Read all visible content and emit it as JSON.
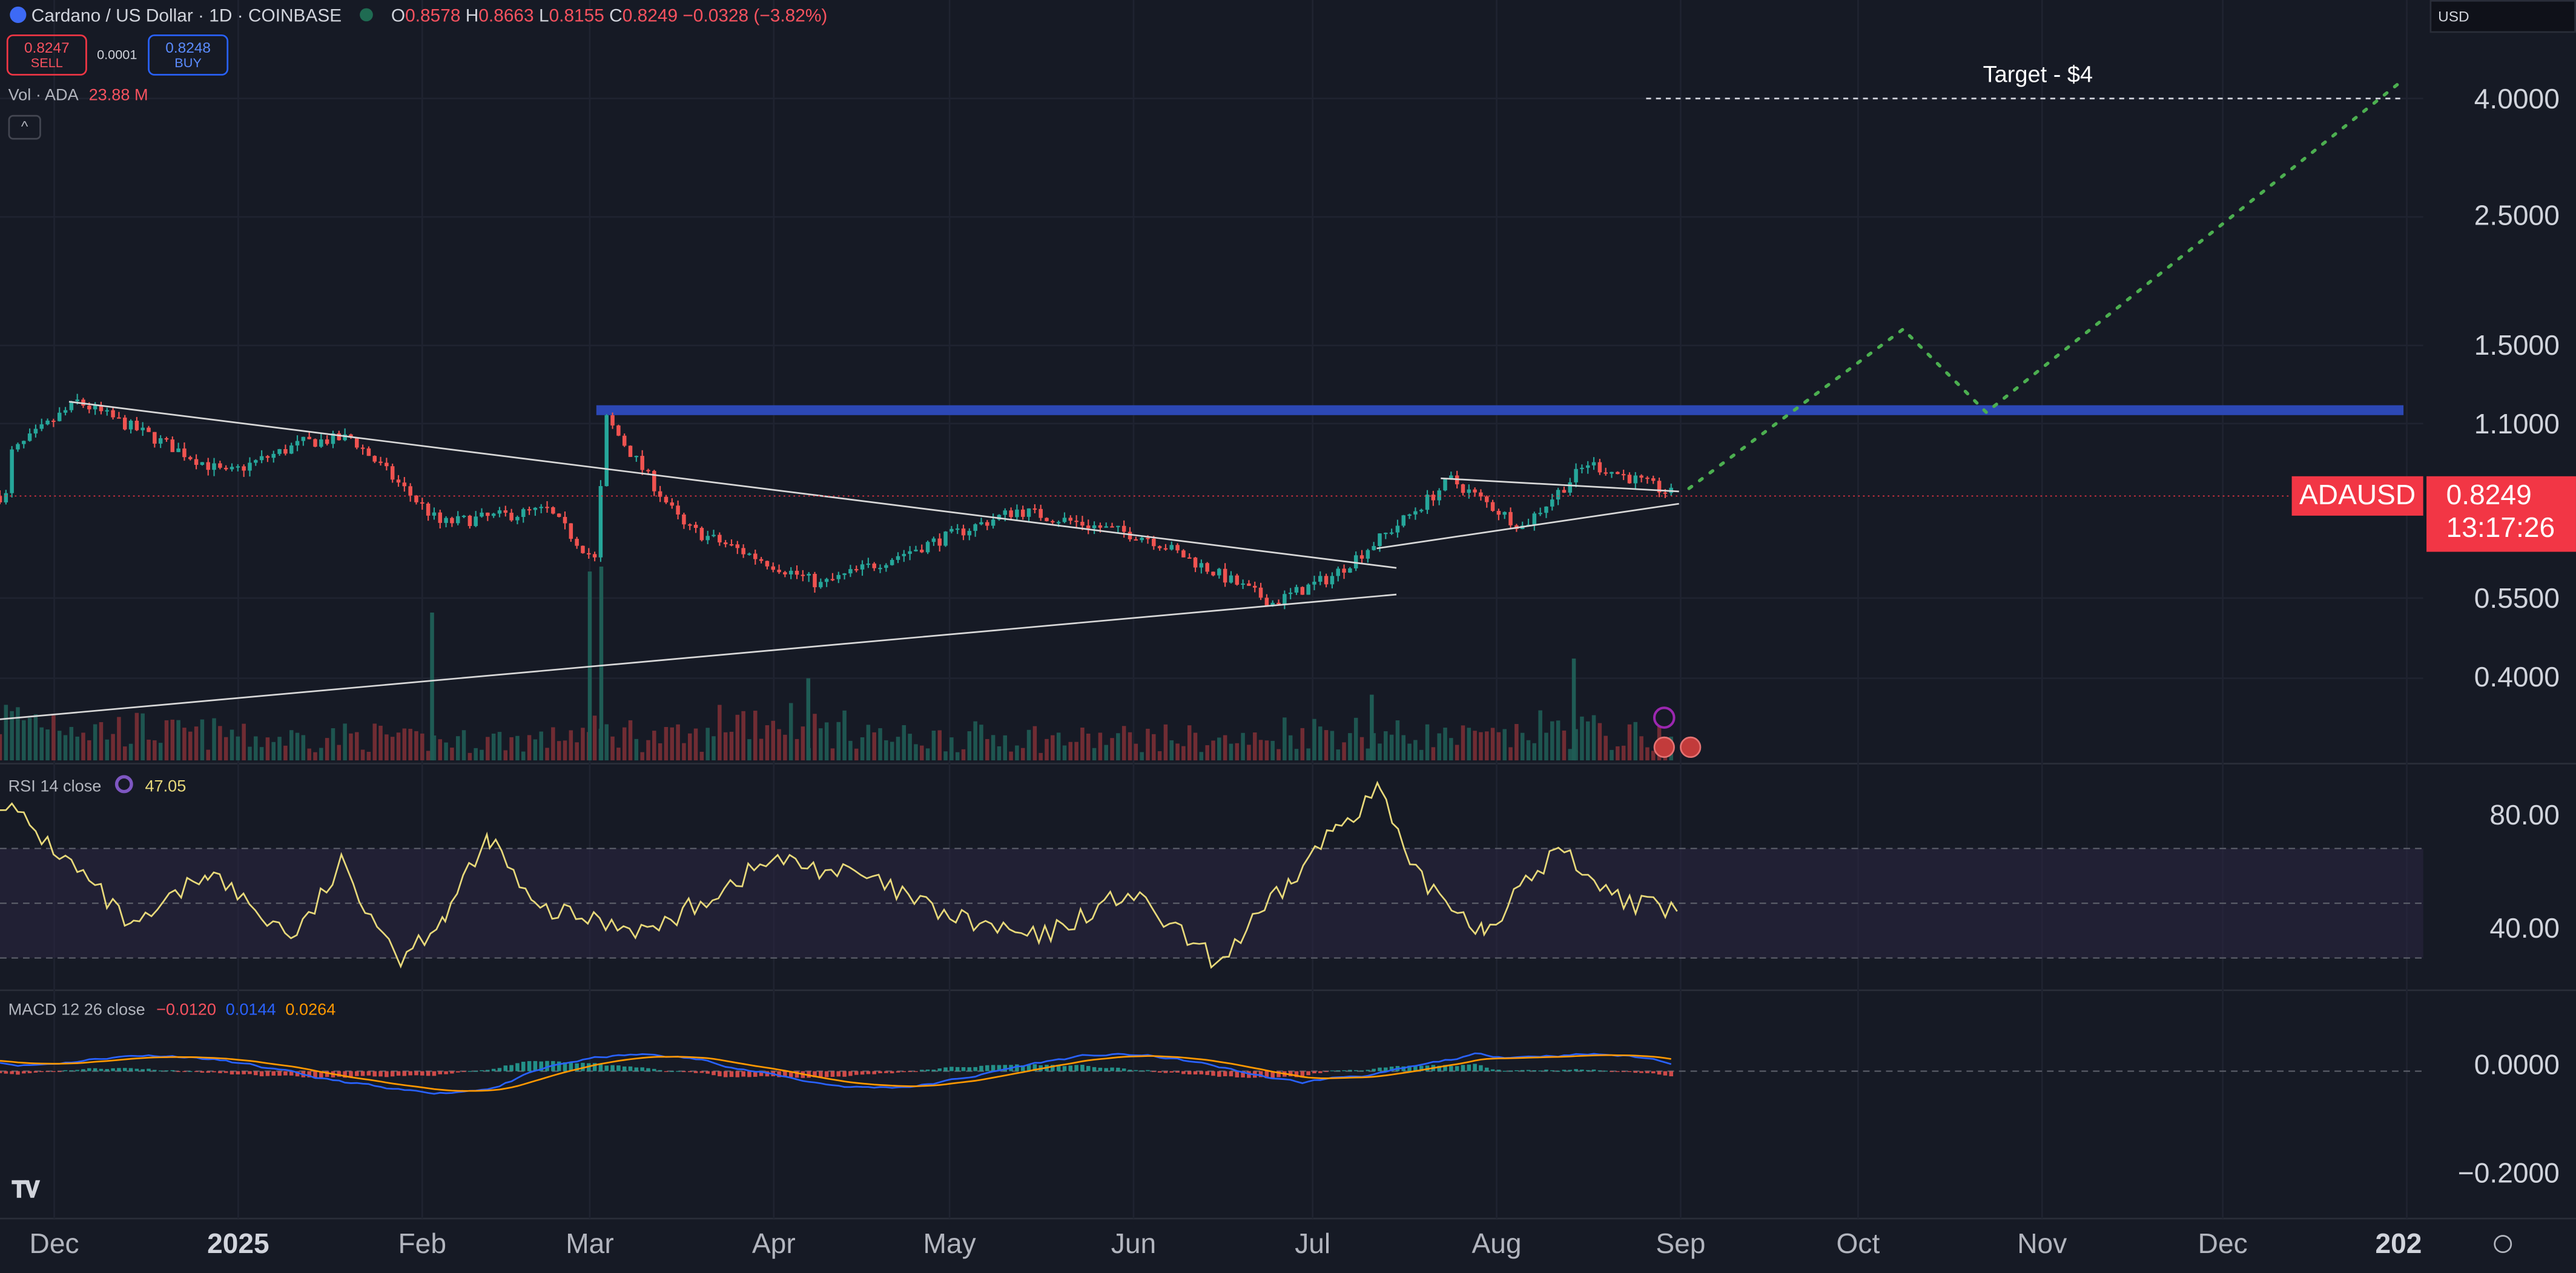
{
  "header": {
    "symbol": "Cardano / US Dollar · 1D · COINBASE",
    "open_label": "O",
    "open": "0.8578",
    "high_label": "H",
    "high": "0.8663",
    "low_label": "L",
    "low": "0.8155",
    "close_label": "C",
    "close": "0.8249",
    "change": "−0.0328 (−3.82%)",
    "sell_price": "0.8247",
    "sell_label": "SELL",
    "spread": "0.0001",
    "buy_price": "0.8248",
    "buy_label": "BUY",
    "vol_label": "Vol · ADA",
    "vol_value": "23.88 M",
    "currency": "USD"
  },
  "price_tag": {
    "symbol": "ADAUSD",
    "price": "0.8249",
    "countdown": "13:17:26"
  },
  "annotation": {
    "text": "Target - $4"
  },
  "rsi": {
    "label": "RSI 14 close",
    "value": "47.05"
  },
  "macd": {
    "label": "MACD 12 26 close",
    "v1": "−0.0120",
    "v2": "0.0144",
    "v3": "0.0264"
  },
  "colors": {
    "bg": "#161a25",
    "up": "#26a69a",
    "down": "#ef5350",
    "resistance": "#2c48b5",
    "projection": "#4caf50",
    "rsi_line": "#e8d97a"
  },
  "chart_data": [
    {
      "type": "candlestick",
      "scale": "log",
      "ylim": [
        0.32,
        5.3
      ],
      "yticks": [
        "4.0000",
        "2.5000",
        "1.5000",
        "1.1000",
        "0.5500",
        "0.4000"
      ],
      "xticks": [
        "Dec",
        "2025",
        "Feb",
        "Mar",
        "Apr",
        "May",
        "Jun",
        "Jul",
        "Aug",
        "Sep",
        "Oct",
        "Nov",
        "Dec",
        "202"
      ],
      "close_path": [
        [
          "2024-11-22",
          0.98
        ],
        [
          "2024-12-03",
          1.2
        ],
        [
          "2024-12-15",
          1.05
        ],
        [
          "2024-12-28",
          0.9
        ],
        [
          "2025-01-10",
          1.02
        ],
        [
          "2025-01-18",
          1.04
        ],
        [
          "2025-02-02",
          0.74
        ],
        [
          "2025-02-20",
          0.78
        ],
        [
          "2025-02-28",
          0.64
        ],
        [
          "2025-03-02",
          1.12
        ],
        [
          "2025-03-15",
          0.73
        ],
        [
          "2025-04-07",
          0.58
        ],
        [
          "2025-05-10",
          0.78
        ],
        [
          "2025-06-01",
          0.7
        ],
        [
          "2025-06-22",
          0.54
        ],
        [
          "2025-07-02",
          0.6
        ],
        [
          "2025-07-14",
          0.75
        ],
        [
          "2025-07-22",
          0.88
        ],
        [
          "2025-08-03",
          0.73
        ],
        [
          "2025-08-14",
          0.94
        ],
        [
          "2025-08-22",
          0.88
        ],
        [
          "2025-08-29",
          0.8249
        ]
      ],
      "volume_path": [
        1,
        0.6,
        0.45,
        0.3,
        0.35,
        0.2,
        0.25,
        0.5,
        0.3,
        1.0,
        0.6,
        0.3,
        0.35,
        0.25,
        0.3,
        0.2,
        0.55,
        0.4,
        0.3,
        0.6,
        0.35,
        0.3
      ],
      "last_price": 0.8249,
      "resistance": 1.16,
      "target": 4.0,
      "projection": [
        [
          "2025-08-31",
          0.85
        ],
        [
          "2025-10-06",
          1.6
        ],
        [
          "2025-10-20",
          1.15
        ],
        [
          "2025-12-29",
          4.3
        ]
      ]
    },
    {
      "type": "line",
      "name": "RSI 14 close",
      "ylim": [
        20,
        95
      ],
      "yticks": [
        "80.00",
        "40.00"
      ],
      "bands": [
        70,
        50,
        30
      ],
      "values": [
        [
          0,
          88
        ],
        [
          6,
          58
        ],
        [
          9,
          40
        ],
        [
          14,
          62
        ],
        [
          18,
          44
        ],
        [
          20,
          38
        ],
        [
          23,
          64
        ],
        [
          27,
          30
        ],
        [
          30,
          46
        ],
        [
          33,
          74
        ],
        [
          36,
          48
        ],
        [
          44,
          40
        ],
        [
          52,
          66
        ],
        [
          58,
          60
        ],
        [
          64,
          45
        ],
        [
          70,
          37
        ],
        [
          76,
          54
        ],
        [
          82,
          28
        ],
        [
          87,
          58
        ],
        [
          90,
          78
        ],
        [
          93,
          92
        ],
        [
          95,
          62
        ],
        [
          100,
          40
        ],
        [
          105,
          70
        ],
        [
          109,
          52
        ],
        [
          113,
          46
        ]
      ]
    },
    {
      "type": "line",
      "name": "MACD 12 26 close",
      "ylim": [
        -0.27,
        0.13
      ],
      "yticks": [
        "0.0000",
        "−0.2000"
      ]
    }
  ]
}
